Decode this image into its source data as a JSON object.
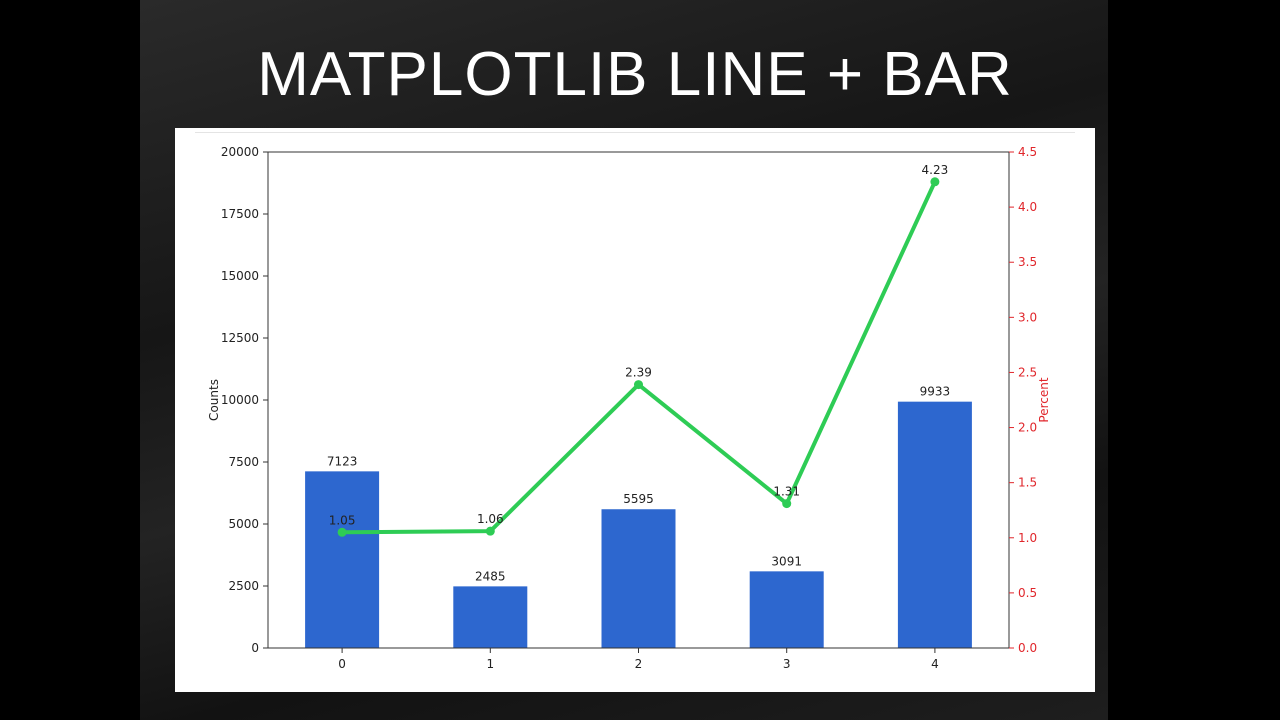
{
  "slide": {
    "title": "MATPLOTLIB LINE + BAR"
  },
  "chart_data": {
    "type": "bar",
    "categories": [
      "0",
      "1",
      "2",
      "3",
      "4"
    ],
    "bars": {
      "values": [
        7123,
        2485,
        5595,
        3091,
        9933
      ],
      "labels": [
        "7123",
        "2485",
        "5595",
        "3091",
        "9933"
      ],
      "color": "#2d67cf",
      "axis": "left"
    },
    "line": {
      "type": "line",
      "values": [
        1.05,
        1.06,
        2.39,
        1.31,
        4.23
      ],
      "labels": [
        "1.05",
        "1.06",
        "2.39",
        "1.31",
        "4.23"
      ],
      "color": "#2ecc55",
      "axis": "right"
    },
    "ylabel": "Counts",
    "ylim": [
      0,
      20000
    ],
    "yticks": [
      "0",
      "2500",
      "5000",
      "7500",
      "10000",
      "12500",
      "15000",
      "17500",
      "20000"
    ],
    "y2label": "Percent",
    "y2lim": [
      0,
      4.5
    ],
    "y2ticks": [
      "0.0",
      "0.5",
      "1.0",
      "1.5",
      "2.0",
      "2.5",
      "3.0",
      "3.5",
      "4.0",
      "4.5"
    ],
    "y2color": "#e0262b",
    "grid": false
  }
}
